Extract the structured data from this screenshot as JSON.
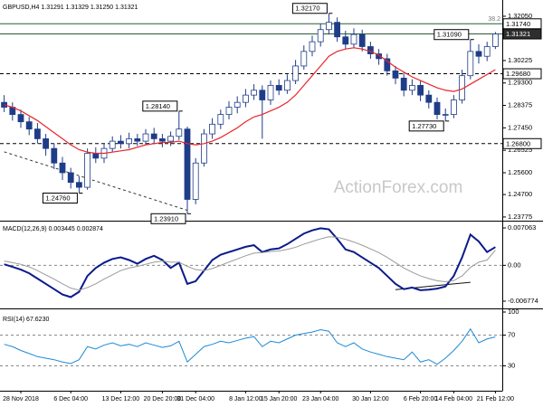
{
  "chart_data": [
    {
      "type": "candlestick",
      "title": "GBPUSD,H4 1.31291 1.31329 1.31250 1.31321",
      "watermark": "ActionForex.com",
      "annotation": "38.2",
      "color": "#1f3c88",
      "open": [
        1.285,
        1.283,
        1.28,
        1.277,
        1.274,
        1.27,
        1.266,
        1.26,
        1.256,
        1.252,
        1.25,
        1.264,
        1.262,
        1.266,
        1.269,
        1.268,
        1.27,
        1.269,
        1.272,
        1.27,
        1.269,
        1.271,
        1.274,
        1.245,
        1.26,
        1.272,
        1.276,
        1.28,
        1.283,
        1.285,
        1.288,
        1.29,
        1.286,
        1.292,
        1.29,
        1.294,
        1.3,
        1.306,
        1.31,
        1.315,
        1.318,
        1.312,
        1.309,
        1.313,
        1.308,
        1.305,
        1.303,
        1.298,
        1.295,
        1.29,
        1.292,
        1.288,
        1.285,
        1.28,
        1.28,
        1.286,
        1.296,
        1.306,
        1.304,
        1.308
      ],
      "high": [
        1.288,
        1.285,
        1.282,
        1.279,
        1.2765,
        1.272,
        1.268,
        1.2625,
        1.258,
        1.2545,
        1.266,
        1.2665,
        1.268,
        1.271,
        1.2715,
        1.2725,
        1.272,
        1.274,
        1.2745,
        1.272,
        1.273,
        1.2814,
        1.275,
        1.262,
        1.274,
        1.2785,
        1.282,
        1.2855,
        1.2875,
        1.2905,
        1.2925,
        1.292,
        1.294,
        1.2945,
        1.2965,
        1.3025,
        1.3085,
        1.3125,
        1.3175,
        1.3217,
        1.32,
        1.3145,
        1.3155,
        1.315,
        1.31,
        1.307,
        1.305,
        1.3,
        1.2975,
        1.2945,
        1.294,
        1.29,
        1.287,
        1.2825,
        1.288,
        1.2985,
        1.3109,
        1.309,
        1.31,
        1.314
      ],
      "low": [
        1.281,
        1.2775,
        1.2745,
        1.2715,
        1.268,
        1.263,
        1.2575,
        1.253,
        1.2495,
        1.2476,
        1.249,
        1.26,
        1.26,
        1.2645,
        1.266,
        1.266,
        1.267,
        1.2675,
        1.268,
        1.2665,
        1.267,
        1.2695,
        1.2391,
        1.243,
        1.2585,
        1.27,
        1.274,
        1.278,
        1.2805,
        1.283,
        1.286,
        1.27,
        1.284,
        1.288,
        1.2885,
        1.2925,
        1.2985,
        1.304,
        1.308,
        1.313,
        1.31,
        1.307,
        1.3075,
        1.306,
        1.303,
        1.3005,
        1.296,
        1.2925,
        1.2875,
        1.288,
        1.2855,
        1.2825,
        1.278,
        1.2773,
        1.2785,
        1.2845,
        1.2945,
        1.301,
        1.302,
        1.307
      ],
      "close": [
        1.283,
        1.28,
        1.277,
        1.274,
        1.27,
        1.266,
        1.26,
        1.256,
        1.252,
        1.25,
        1.264,
        1.262,
        1.266,
        1.269,
        1.268,
        1.27,
        1.269,
        1.272,
        1.27,
        1.269,
        1.271,
        1.274,
        1.245,
        1.26,
        1.272,
        1.276,
        1.28,
        1.283,
        1.285,
        1.288,
        1.29,
        1.286,
        1.292,
        1.29,
        1.294,
        1.3,
        1.306,
        1.31,
        1.315,
        1.318,
        1.312,
        1.309,
        1.313,
        1.308,
        1.305,
        1.303,
        1.298,
        1.295,
        1.29,
        1.292,
        1.288,
        1.285,
        1.28,
        1.28,
        1.286,
        1.296,
        1.306,
        1.304,
        1.308,
        1.3132
      ],
      "moving_average": {
        "color": "#e8262b",
        "values": [
          1.284,
          1.283,
          1.2815,
          1.2795,
          1.2775,
          1.275,
          1.2725,
          1.27,
          1.2675,
          1.2655,
          1.2645,
          1.264,
          1.264,
          1.2645,
          1.265,
          1.2655,
          1.2665,
          1.2675,
          1.268,
          1.2685,
          1.2685,
          1.269,
          1.268,
          1.2675,
          1.268,
          1.269,
          1.2705,
          1.2725,
          1.2745,
          1.277,
          1.279,
          1.28,
          1.2815,
          1.283,
          1.285,
          1.288,
          1.292,
          1.296,
          1.3,
          1.304,
          1.306,
          1.307,
          1.3075,
          1.307,
          1.306,
          1.3045,
          1.302,
          1.2995,
          1.2975,
          1.2955,
          1.294,
          1.2925,
          1.291,
          1.29,
          1.2895,
          1.2905,
          1.2925,
          1.2945,
          1.2965,
          1.2985
        ]
      },
      "levels": [
        {
          "value": 1.3174,
          "label": "1.31740",
          "color": "#2e5a3a",
          "dashed": false
        },
        {
          "value": 1.31321,
          "label": "1.31321",
          "color": "#2e5a3a",
          "dashed": false,
          "current": true
        },
        {
          "value": 1.2968,
          "label": "1.29680",
          "color": "#000000",
          "dashed": true
        },
        {
          "value": 1.268,
          "label": "1.26800",
          "color": "#000000",
          "dashed": true
        }
      ],
      "swing_labels": [
        {
          "value": 1.3217,
          "label": "1.32170"
        },
        {
          "value": 1.3109,
          "label": "1.31090"
        },
        {
          "value": 1.2814,
          "label": "1.28140"
        },
        {
          "value": 1.2773,
          "label": "1.27730"
        },
        {
          "value": 1.2476,
          "label": "1.24760"
        },
        {
          "value": 1.2391,
          "label": "1.23910"
        }
      ],
      "trendline": {
        "x": [
          0,
          22
        ],
        "y": [
          1.2646,
          1.2405
        ]
      },
      "ylim": [
        1.2366,
        1.3272
      ],
      "yticks": [
        {
          "value": 1.3205,
          "label": "1.32050"
        },
        1.30225,
        {
          "value": 1.293,
          "label": "1.29300"
        },
        1.28375,
        {
          "value": 1.2745,
          "label": "1.27450"
        },
        1.26525,
        {
          "value": 1.256,
          "label": "1.25600"
        },
        {
          "value": 1.247,
          "label": "1.24700"
        },
        1.23775
      ]
    },
    {
      "type": "line",
      "title": "MACD(12,26,9) 0.003445 0.002874",
      "series": [
        {
          "color": "#0a1a8c",
          "width": 2,
          "values": [
            0.0002,
            -0.0003,
            -0.0008,
            -0.0015,
            -0.0025,
            -0.0035,
            -0.0045,
            -0.0055,
            -0.006,
            -0.005,
            -0.002,
            -0.0005,
            0.0005,
            0.0012,
            0.0015,
            0.001,
            0.0003,
            0.0012,
            0.0018,
            0.001,
            -0.0005,
            0.0005,
            -0.0035,
            -0.003,
            -0.001,
            0.001,
            0.002,
            0.0025,
            0.003,
            0.0035,
            0.0038,
            0.0025,
            0.003,
            0.0032,
            0.004,
            0.005,
            0.006,
            0.0066,
            0.007,
            0.0068,
            0.005,
            0.003,
            0.0025,
            0.0015,
            0.0005,
            -0.0005,
            -0.002,
            -0.0035,
            -0.0045,
            -0.0042,
            -0.0047,
            -0.0046,
            -0.0044,
            -0.004,
            -0.002,
            0.0015,
            0.0058,
            0.0045,
            0.0025,
            0.003445
          ]
        },
        {
          "color": "#9a9a9a",
          "width": 1,
          "values": [
            0.0008,
            0.0005,
            0.0002,
            -0.0003,
            -0.001,
            -0.0018,
            -0.0026,
            -0.0035,
            -0.0043,
            -0.0047,
            -0.0042,
            -0.0035,
            -0.0026,
            -0.0018,
            -0.001,
            -0.0005,
            -0.0002,
            0.0002,
            0.0006,
            0.0008,
            0.0006,
            0.0006,
            -0.0002,
            -0.0008,
            -0.001,
            -0.0006,
            0.0,
            0.0006,
            0.0012,
            0.0018,
            0.0023,
            0.0024,
            0.0026,
            0.0027,
            0.003,
            0.0034,
            0.004,
            0.0045,
            0.005,
            0.0054,
            0.0053,
            0.0049,
            0.0044,
            0.0038,
            0.0031,
            0.0024,
            0.0015,
            0.0005,
            -0.0005,
            -0.0013,
            -0.002,
            -0.0025,
            -0.0029,
            -0.0031,
            -0.0029,
            -0.002,
            -0.0004,
            0.0006,
            0.001,
            0.002874
          ]
        }
      ],
      "trendline": {
        "x": [
          47,
          56
        ],
        "y": [
          -0.0046,
          -0.0032
        ]
      },
      "reference_lines": [
        0
      ],
      "ylim": [
        -0.00797,
        0.00826
      ],
      "yticks": [
        0.007063,
        {
          "value": 0,
          "label": "0.00"
        },
        -0.006774
      ]
    },
    {
      "type": "line",
      "title": "RSI(14) 67.6230",
      "series": [
        {
          "color": "#1e8ad6",
          "width": 1,
          "values": [
            58,
            55,
            50,
            46,
            42,
            40,
            38,
            35,
            33,
            38,
            55,
            52,
            57,
            60,
            56,
            58,
            55,
            60,
            57,
            54,
            56,
            62,
            35,
            45,
            55,
            58,
            62,
            60,
            63,
            66,
            68,
            55,
            62,
            60,
            65,
            70,
            72,
            74,
            77,
            75,
            60,
            55,
            60,
            52,
            48,
            45,
            42,
            40,
            38,
            48,
            35,
            38,
            32,
            40,
            50,
            62,
            78,
            60,
            65,
            67.623
          ]
        }
      ],
      "reference_lines": [
        30,
        70
      ],
      "ylim": [
        0,
        100
      ],
      "yticks": [
        100,
        70,
        30
      ],
      "categories": [
        null,
        null,
        "28 Nov 2018",
        null,
        null,
        null,
        null,
        null,
        "6 Dec 04:00",
        null,
        null,
        null,
        null,
        null,
        "13 Dec 12:00",
        null,
        null,
        null,
        null,
        "20 Dec 20:00",
        null,
        null,
        null,
        "31 Dec 04:00",
        null,
        null,
        null,
        null,
        null,
        "8 Jan 12:00",
        null,
        null,
        null,
        "15 Jan 20:00",
        null,
        null,
        null,
        null,
        "23 Jan 04:00",
        null,
        null,
        null,
        null,
        null,
        "30 Jan 12:00",
        null,
        null,
        null,
        null,
        null,
        "6 Feb 20:00",
        null,
        null,
        null,
        "14 Feb 04:00",
        null,
        null,
        null,
        null,
        "21 Feb 12:00"
      ]
    }
  ]
}
